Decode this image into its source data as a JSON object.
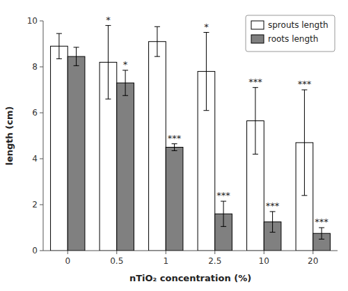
{
  "chart_data": {
    "type": "bar",
    "categories": [
      "0",
      "0.5",
      "1",
      "2.5",
      "10",
      "20"
    ],
    "series": [
      {
        "name": "sprouts length",
        "color": "#ffffff",
        "values": [
          8.9,
          8.2,
          9.1,
          7.8,
          5.65,
          4.7
        ],
        "errors": [
          0.55,
          1.6,
          0.65,
          1.7,
          1.45,
          2.3
        ],
        "significance": [
          null,
          "*",
          null,
          "*",
          "***",
          "***"
        ]
      },
      {
        "name": "roots length",
        "color": "#808080",
        "values": [
          8.45,
          7.3,
          4.5,
          1.6,
          1.25,
          0.75
        ],
        "errors": [
          0.4,
          0.55,
          0.15,
          0.55,
          0.45,
          0.25
        ],
        "significance": [
          null,
          "*",
          "***",
          "***",
          "***",
          "***"
        ]
      }
    ],
    "xlabel": "nTiO₂ concentration (%)",
    "ylabel": "length (cm)",
    "ylim": [
      0,
      10
    ],
    "yticks": [
      0,
      2,
      4,
      6,
      8,
      10
    ],
    "legend": "upper right",
    "grid": false
  }
}
